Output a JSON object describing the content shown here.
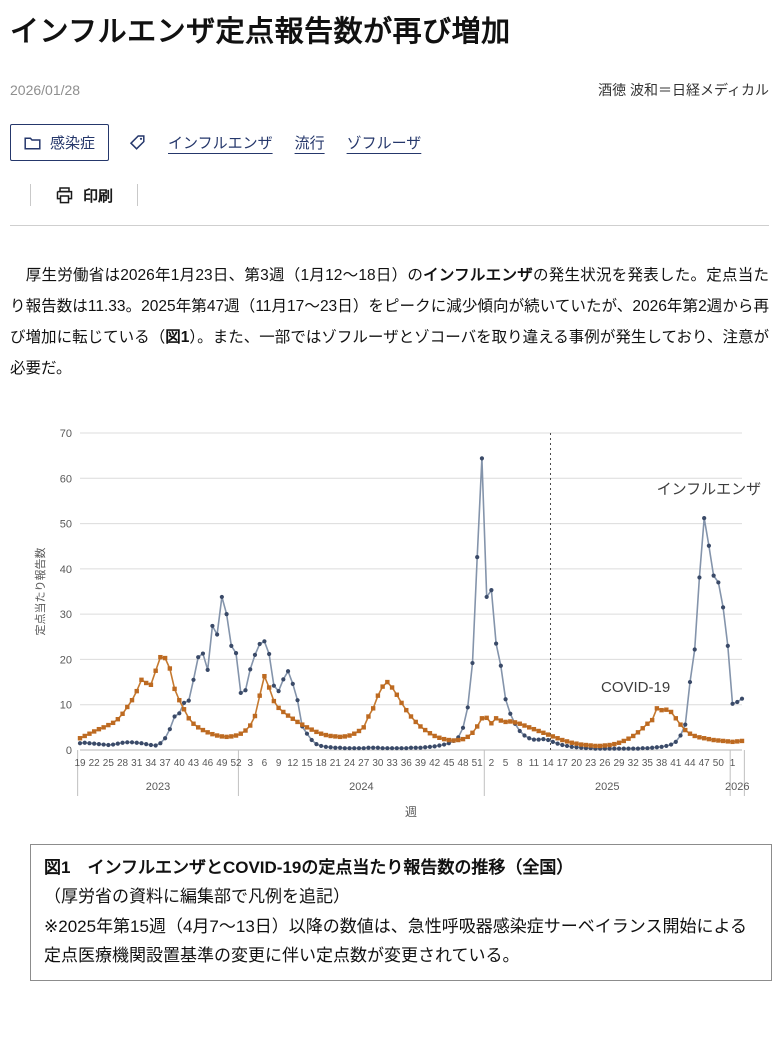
{
  "article": {
    "title": "インフルエンザ定点報告数が再び増加",
    "date": "2026/01/28",
    "author": "酒徳 波和＝日経メディカル",
    "category": "感染症",
    "tags": [
      "インフルエンザ",
      "流行",
      "ゾフルーザ"
    ],
    "print_label": "印刷",
    "body_segments": [
      {
        "text": "　厚生労働省は2026年1月23日、第3週（1月12～18日）の",
        "bold": false
      },
      {
        "text": "インフルエンザ",
        "bold": true
      },
      {
        "text": "の発生状況を発表した。定点当たり報告数は11.33。2025年第47週（11月17～23日）をピークに減少傾向が続いていたが、2026年第2週から再び増加に転じている（",
        "bold": false
      },
      {
        "text": "図1",
        "bold": true
      },
      {
        "text": "）。また、一部ではゾフルーザとゾコーバを取り違える事例が発生しており、注意が必要だ。",
        "bold": false
      }
    ]
  },
  "figure": {
    "caption_title": "図1　インフルエンザとCOVID-19の定点当たり報告数の推移（全国）",
    "caption_note": "（厚労省の資料に編集部で凡例を追記）",
    "caption_remark": "※2025年第15週（4月7～13日）以降の数値は、急性呼吸器感染症サーベイランス開始による定点医療機関設置基準の変更に伴い定点数が変更されている。"
  },
  "chart_data": {
    "type": "line",
    "title": "",
    "xlabel": "週",
    "ylabel": "定点当たり報告数",
    "ylim": [
      0,
      70
    ],
    "yticks": [
      0,
      10,
      20,
      30,
      40,
      50,
      60,
      70
    ],
    "grid": true,
    "legend_position": "none",
    "x_description": "週番号（2023年第19週〜2026年第3週、毎週1点）",
    "x_tick_labels": [
      {
        "i": 0,
        "label": "19"
      },
      {
        "i": 3,
        "label": "22"
      },
      {
        "i": 6,
        "label": "25"
      },
      {
        "i": 9,
        "label": "28"
      },
      {
        "i": 12,
        "label": "31"
      },
      {
        "i": 15,
        "label": "34"
      },
      {
        "i": 18,
        "label": "37"
      },
      {
        "i": 21,
        "label": "40"
      },
      {
        "i": 24,
        "label": "43"
      },
      {
        "i": 27,
        "label": "46"
      },
      {
        "i": 30,
        "label": "49"
      },
      {
        "i": 33,
        "label": "52"
      },
      {
        "i": 36,
        "label": "3"
      },
      {
        "i": 39,
        "label": "6"
      },
      {
        "i": 42,
        "label": "9"
      },
      {
        "i": 45,
        "label": "12"
      },
      {
        "i": 48,
        "label": "15"
      },
      {
        "i": 51,
        "label": "18"
      },
      {
        "i": 54,
        "label": "21"
      },
      {
        "i": 57,
        "label": "24"
      },
      {
        "i": 60,
        "label": "27"
      },
      {
        "i": 63,
        "label": "30"
      },
      {
        "i": 66,
        "label": "33"
      },
      {
        "i": 69,
        "label": "36"
      },
      {
        "i": 72,
        "label": "39"
      },
      {
        "i": 75,
        "label": "42"
      },
      {
        "i": 78,
        "label": "45"
      },
      {
        "i": 81,
        "label": "48"
      },
      {
        "i": 84,
        "label": "51"
      },
      {
        "i": 87,
        "label": "2"
      },
      {
        "i": 90,
        "label": "5"
      },
      {
        "i": 93,
        "label": "8"
      },
      {
        "i": 96,
        "label": "11"
      },
      {
        "i": 99,
        "label": "14"
      },
      {
        "i": 102,
        "label": "17"
      },
      {
        "i": 105,
        "label": "20"
      },
      {
        "i": 108,
        "label": "23"
      },
      {
        "i": 111,
        "label": "26"
      },
      {
        "i": 114,
        "label": "29"
      },
      {
        "i": 117,
        "label": "32"
      },
      {
        "i": 120,
        "label": "35"
      },
      {
        "i": 123,
        "label": "38"
      },
      {
        "i": 126,
        "label": "41"
      },
      {
        "i": 129,
        "label": "44"
      },
      {
        "i": 132,
        "label": "47"
      },
      {
        "i": 135,
        "label": "50"
      },
      {
        "i": 138,
        "label": "1"
      }
    ],
    "year_labels": [
      {
        "label": "2023",
        "from": 0,
        "to": 33
      },
      {
        "label": "2024",
        "from": 34,
        "to": 85
      },
      {
        "label": "2025",
        "from": 86,
        "to": 137
      },
      {
        "label": "2026",
        "from": 138,
        "to": 140
      }
    ],
    "separators": [
      -0.5,
      33.5,
      85.5,
      137.5,
      140.5
    ],
    "dashed_line_index": 99.5,
    "annotations": [
      {
        "text": "インフルエンザ",
        "i": 133,
        "v": 56.5
      },
      {
        "text": "COVID-19",
        "i": 117.5,
        "v": 12.8
      }
    ],
    "series": [
      {
        "name": "インフルエンザ",
        "marker": "circle",
        "line_color": "#8494ab",
        "marker_color": "#3a4a68",
        "values": [
          1.5,
          1.6,
          1.5,
          1.4,
          1.3,
          1.2,
          1.1,
          1.2,
          1.4,
          1.6,
          1.7,
          1.7,
          1.6,
          1.5,
          1.3,
          1.1,
          1.0,
          1.5,
          2.6,
          4.6,
          7.4,
          8.1,
          10.4,
          10.9,
          15.5,
          20.5,
          21.3,
          17.7,
          27.4,
          25.5,
          33.8,
          30.0,
          23.0,
          21.4,
          12.6,
          13.2,
          17.8,
          21.0,
          23.4,
          24.0,
          21.2,
          14.2,
          13.0,
          15.6,
          17.4,
          14.6,
          11.0,
          5.2,
          3.6,
          2.2,
          1.3,
          0.9,
          0.7,
          0.6,
          0.5,
          0.5,
          0.4,
          0.4,
          0.4,
          0.4,
          0.4,
          0.5,
          0.5,
          0.5,
          0.4,
          0.4,
          0.4,
          0.4,
          0.4,
          0.4,
          0.5,
          0.5,
          0.5,
          0.6,
          0.7,
          0.8,
          1.0,
          1.2,
          1.5,
          2.0,
          2.8,
          4.9,
          9.4,
          19.2,
          42.6,
          64.4,
          33.8,
          35.3,
          23.5,
          18.6,
          11.2,
          8.0,
          5.8,
          4.2,
          3.2,
          2.6,
          2.3,
          2.3,
          2.4,
          2.2,
          1.8,
          1.4,
          1.1,
          0.9,
          0.7,
          0.6,
          0.5,
          0.4,
          0.4,
          0.3,
          0.3,
          0.3,
          0.3,
          0.3,
          0.3,
          0.3,
          0.3,
          0.3,
          0.3,
          0.4,
          0.4,
          0.5,
          0.6,
          0.7,
          0.9,
          1.2,
          1.8,
          3.2,
          5.6,
          15.0,
          22.2,
          38.1,
          51.2,
          45.1,
          38.5,
          37.0,
          31.5,
          23.0,
          10.2,
          10.6,
          11.33
        ]
      },
      {
        "name": "COVID-19",
        "marker": "square",
        "line_color": "#c5792f",
        "marker_color": "#bd6a21",
        "values": [
          2.6,
          3.1,
          3.6,
          4.1,
          4.6,
          5.0,
          5.5,
          6.0,
          6.8,
          8.0,
          9.5,
          11.0,
          13.0,
          15.5,
          14.8,
          14.4,
          17.5,
          20.5,
          20.3,
          18.0,
          13.5,
          11.0,
          9.0,
          7.0,
          5.8,
          5.0,
          4.4,
          3.9,
          3.5,
          3.2,
          3.0,
          2.9,
          3.0,
          3.2,
          3.6,
          4.3,
          5.4,
          7.5,
          12.0,
          16.3,
          13.8,
          10.8,
          9.3,
          8.4,
          7.6,
          6.9,
          6.2,
          5.6,
          5.0,
          4.5,
          4.0,
          3.6,
          3.3,
          3.1,
          3.0,
          2.9,
          3.0,
          3.2,
          3.6,
          4.2,
          5.0,
          7.4,
          9.2,
          12.0,
          14.0,
          15.0,
          13.8,
          12.2,
          10.4,
          8.8,
          7.4,
          6.2,
          5.2,
          4.4,
          3.7,
          3.1,
          2.7,
          2.4,
          2.2,
          2.1,
          2.2,
          2.4,
          2.9,
          3.8,
          5.2,
          7.0,
          7.1,
          5.9,
          7.0,
          6.5,
          6.2,
          6.3,
          6.1,
          5.8,
          5.4,
          5.0,
          4.6,
          4.2,
          3.8,
          3.4,
          3.0,
          2.6,
          2.2,
          1.9,
          1.6,
          1.4,
          1.2,
          1.1,
          1.0,
          0.9,
          0.9,
          1.0,
          1.1,
          1.3,
          1.6,
          2.0,
          2.5,
          3.1,
          3.9,
          4.8,
          5.8,
          6.6,
          9.2,
          8.8,
          8.9,
          8.4,
          7.0,
          5.6,
          4.4,
          3.6,
          3.1,
          2.8,
          2.6,
          2.4,
          2.2,
          2.1,
          2.0,
          1.9,
          1.8,
          1.9,
          2.0
        ]
      }
    ]
  },
  "colors": {
    "accent_navy": "#25376b",
    "influenza_line": "#8494ab",
    "influenza_marker": "#3a4a68",
    "covid_line": "#c5792f",
    "gridline": "#dcdcdc",
    "axis_text": "#595959"
  }
}
